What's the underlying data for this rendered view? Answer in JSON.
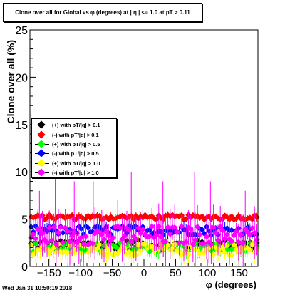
{
  "title": "Clone  over all for Global vs φ (degrees) at | η | <= 1.0 at pT > 0.11",
  "footer": "Wed Jan 31 10:50:19 2018",
  "chart_data": {
    "type": "scatter",
    "ylabel": "Clone  over all (%)",
    "xlabel": "φ (degrees)",
    "xlim": [
      -180,
      180
    ],
    "ylim": [
      0,
      25
    ],
    "x_ticks": [
      -150,
      -100,
      -50,
      0,
      50,
      100,
      150
    ],
    "x_tick_labels": [
      "−150",
      "−100",
      "−50",
      "0",
      "50",
      "100",
      "150"
    ],
    "y_ticks": [
      0,
      5,
      10,
      15,
      20,
      25
    ],
    "y_tick_labels": [
      "0",
      "5",
      "10",
      "15",
      "20",
      "25"
    ],
    "grid": false,
    "legend_position": "middle-left",
    "series": [
      {
        "name": "(+) with pT/|q| > 0.1",
        "color": "#000000",
        "mean": 2.3,
        "spread": 0.5,
        "err": 0.5
      },
      {
        "name": "(-) with pT/|q| > 0.1",
        "color": "#ff0000",
        "mean": 5.2,
        "spread": 0.25,
        "err": 0.3
      },
      {
        "name": "(+) with pT/|q| > 0.5",
        "color": "#00ff00",
        "mean": 2.0,
        "spread": 0.5,
        "err": 0.6
      },
      {
        "name": "(-) with pT/|q| > 0.5",
        "color": "#0000ff",
        "mean": 3.8,
        "spread": 0.5,
        "err": 0.6
      },
      {
        "name": "(+) with pT/|q| > 1.0",
        "color": "#ffff00",
        "mean": 1.8,
        "spread": 0.6,
        "err": 0.8
      },
      {
        "name": "(-) with pT/|q| > 1.0",
        "color": "#ff00ff",
        "mean": 3.3,
        "spread": 1.0,
        "err": 1.8
      }
    ]
  }
}
